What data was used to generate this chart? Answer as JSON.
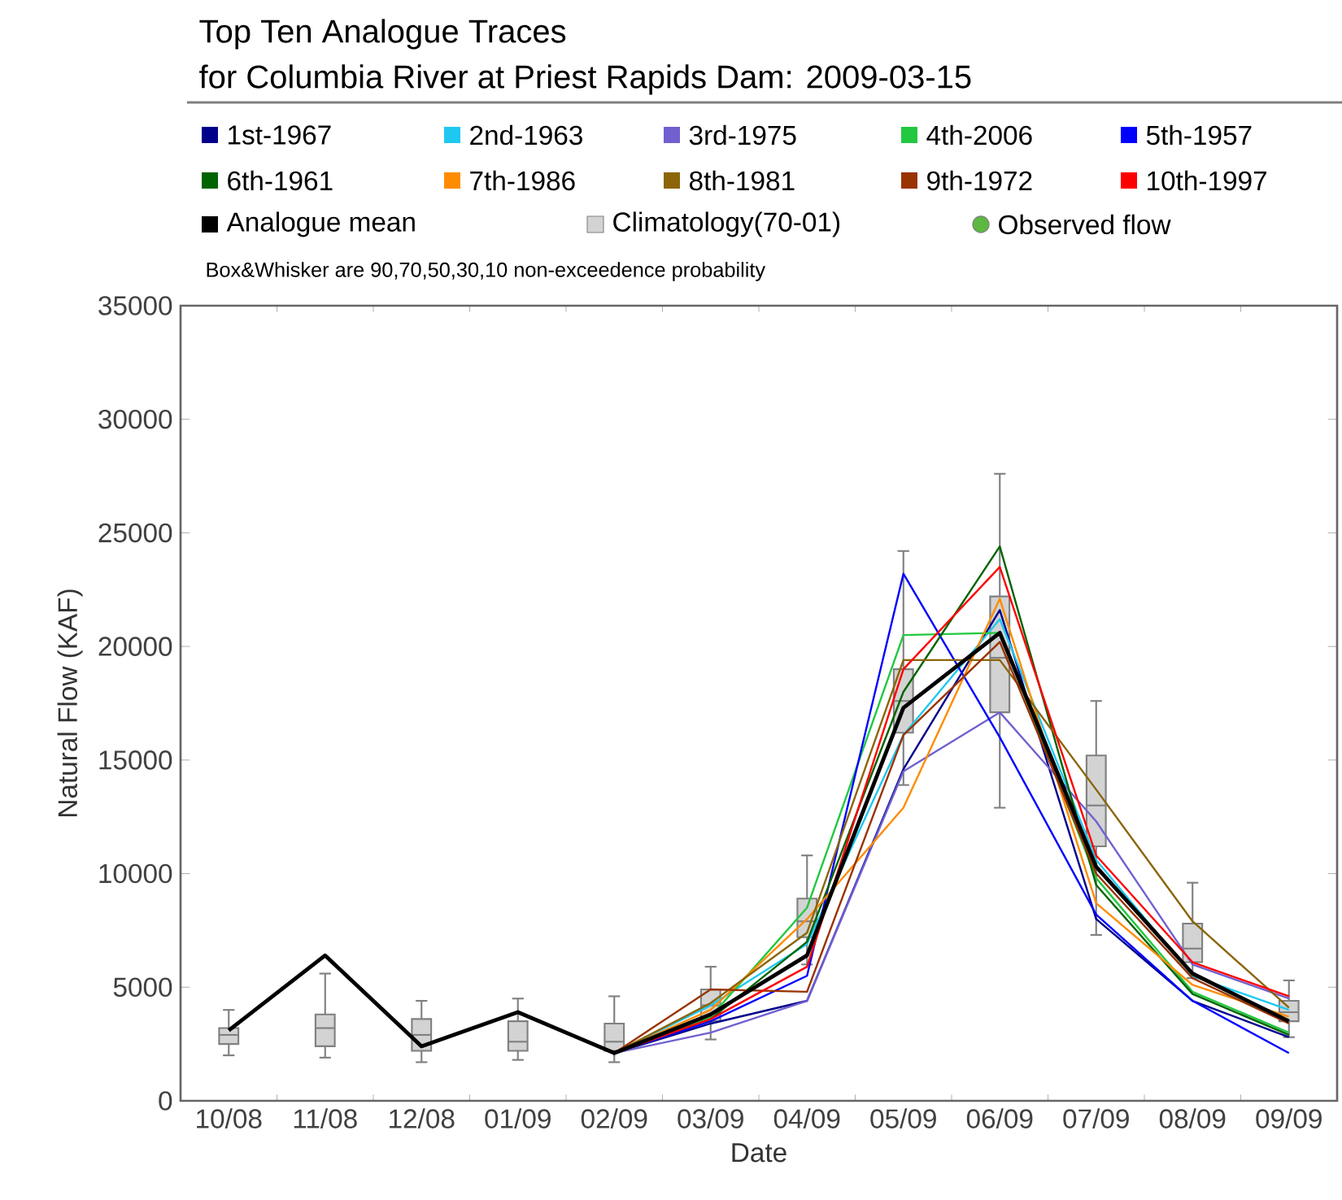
{
  "chart_data": {
    "type": "line",
    "title": "Top Ten Analogue Traces",
    "subtitle": "for Columbia River at Priest Rapids Dam: 2009-03-15",
    "xlabel": "Date",
    "ylabel": "Natural Flow (KAF)",
    "categories": [
      "10/08",
      "11/08",
      "12/08",
      "01/09",
      "02/09",
      "03/09",
      "04/09",
      "05/09",
      "06/09",
      "07/09",
      "08/09",
      "09/09"
    ],
    "ylim": [
      0,
      35000
    ],
    "yticks": [
      0,
      5000,
      10000,
      15000,
      20000,
      25000,
      30000,
      35000
    ],
    "legend": "top",
    "annotations": [
      "Box&Whisker are 90,70,50,30,10 non-exceedence probability"
    ],
    "series": [
      {
        "name": "1st-1967",
        "color": "#00008b",
        "values": [
          null,
          null,
          null,
          null,
          2100,
          3400,
          4400,
          14600,
          21600,
          8000,
          4400,
          2800
        ]
      },
      {
        "name": "2nd-1963",
        "color": "#1ec8f0",
        "values": [
          null,
          null,
          null,
          null,
          2100,
          4200,
          6900,
          16100,
          21200,
          10600,
          5500,
          4000
        ]
      },
      {
        "name": "3rd-1975",
        "color": "#7060d0",
        "values": [
          null,
          null,
          null,
          null,
          2100,
          3000,
          4400,
          14500,
          17100,
          12300,
          6000,
          4500
        ]
      },
      {
        "name": "4th-2006",
        "color": "#22c840",
        "values": [
          null,
          null,
          null,
          null,
          2100,
          3700,
          8500,
          20500,
          20600,
          9800,
          4800,
          3000
        ]
      },
      {
        "name": "5th-1957",
        "color": "#0000ff",
        "values": [
          null,
          null,
          null,
          null,
          2100,
          3500,
          5500,
          23200,
          16000,
          8200,
          4400,
          2100
        ]
      },
      {
        "name": "6th-1961",
        "color": "#006400",
        "values": [
          null,
          null,
          null,
          null,
          2100,
          3600,
          7000,
          18000,
          24400,
          9500,
          4700,
          2900
        ]
      },
      {
        "name": "7th-1986",
        "color": "#ff8c00",
        "values": [
          null,
          null,
          null,
          null,
          2100,
          4000,
          8000,
          12900,
          22100,
          8700,
          5100,
          3700
        ]
      },
      {
        "name": "8th-1981",
        "color": "#8b6508",
        "values": [
          null,
          null,
          null,
          null,
          2100,
          4300,
          7400,
          19400,
          19400,
          13700,
          7900,
          4100
        ]
      },
      {
        "name": "9th-1972",
        "color": "#993300",
        "values": [
          null,
          null,
          null,
          null,
          2100,
          4900,
          4800,
          16100,
          20200,
          10000,
          5400,
          3400
        ]
      },
      {
        "name": "10th-1997",
        "color": "#ff0000",
        "values": [
          null,
          null,
          null,
          null,
          2100,
          3600,
          5900,
          19000,
          23500,
          10800,
          6100,
          4600
        ]
      },
      {
        "name": "Analogue mean",
        "color": "#000000",
        "values": [
          3100,
          6400,
          2400,
          3900,
          2100,
          3800,
          6400,
          17300,
          20600,
          10300,
          5600,
          3500
        ]
      },
      {
        "name": "Climatology(70-01)",
        "type": "box",
        "color": "#d3d3d3",
        "boxes": [
          {
            "low": 2000,
            "q1": 2500,
            "median": 2900,
            "q3": 3200,
            "high": 4000
          },
          {
            "low": 1900,
            "q1": 2400,
            "median": 3200,
            "q3": 3800,
            "high": 5600
          },
          {
            "low": 1700,
            "q1": 2200,
            "median": 2900,
            "q3": 3600,
            "high": 4400
          },
          {
            "low": 1800,
            "q1": 2200,
            "median": 2600,
            "q3": 3500,
            "high": 4500
          },
          {
            "low": 1700,
            "q1": 2200,
            "median": 2600,
            "q3": 3400,
            "high": 4600
          },
          {
            "low": 2700,
            "q1": 3500,
            "median": 4200,
            "q3": 4900,
            "high": 5900
          },
          {
            "low": 6000,
            "q1": 7200,
            "median": 7900,
            "q3": 8900,
            "high": 10800
          },
          {
            "low": 13900,
            "q1": 16200,
            "median": 17600,
            "q3": 19000,
            "high": 24200
          },
          {
            "low": 12900,
            "q1": 17100,
            "median": 19500,
            "q3": 22200,
            "high": 27600
          },
          {
            "low": 7300,
            "q1": 11200,
            "median": 13000,
            "q3": 15200,
            "high": 17600
          },
          {
            "low": 5400,
            "q1": 6100,
            "median": 6700,
            "q3": 7800,
            "high": 9600
          },
          {
            "low": 2800,
            "q1": 3500,
            "median": 3900,
            "q3": 4400,
            "high": 5300
          }
        ]
      },
      {
        "name": "Observed flow",
        "type": "scatter",
        "marker": "circle",
        "color": "#5cb840",
        "values": [
          null,
          null,
          null,
          null,
          null,
          null,
          null,
          null,
          null,
          null,
          null,
          null
        ]
      }
    ]
  }
}
